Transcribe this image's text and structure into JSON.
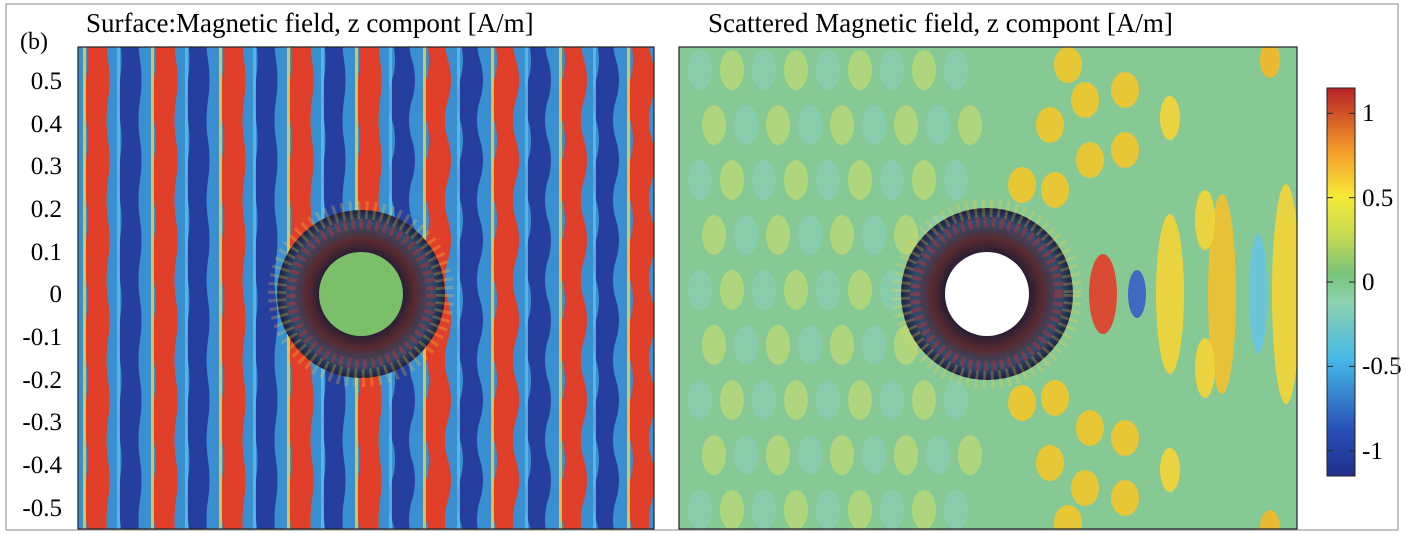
{
  "chart_data": [
    {
      "type": "heatmap",
      "panel_label": "(b)",
      "title": "Surface:Magnetic field,  z compont [A/m]",
      "ylabel": "",
      "xlabel": "",
      "y_ticks": [
        "0.5",
        "0.4",
        "0.3",
        "0.2",
        "0.1",
        "0",
        "-0.1",
        "-0.2",
        "-0.3",
        "-0.4",
        "-0.5"
      ],
      "y_tick_values": [
        0.5,
        0.4,
        0.3,
        0.2,
        0.1,
        0,
        -0.1,
        -0.2,
        -0.3,
        -0.4,
        -0.5
      ],
      "ylim": [
        -0.55,
        0.58
      ],
      "colormap": "jet",
      "clim": [
        -1.15,
        1.15
      ]
    },
    {
      "type": "heatmap",
      "title": "Scattered Magnetic field,  z compont [A/m]",
      "colormap": "jet",
      "clim": [
        -1.15,
        1.15
      ],
      "colorbar_ticks": [
        "1",
        "0.5",
        "0",
        "-0.5",
        "-1"
      ],
      "colorbar_tick_values": [
        1,
        0.5,
        0,
        -0.5,
        -1
      ]
    }
  ]
}
